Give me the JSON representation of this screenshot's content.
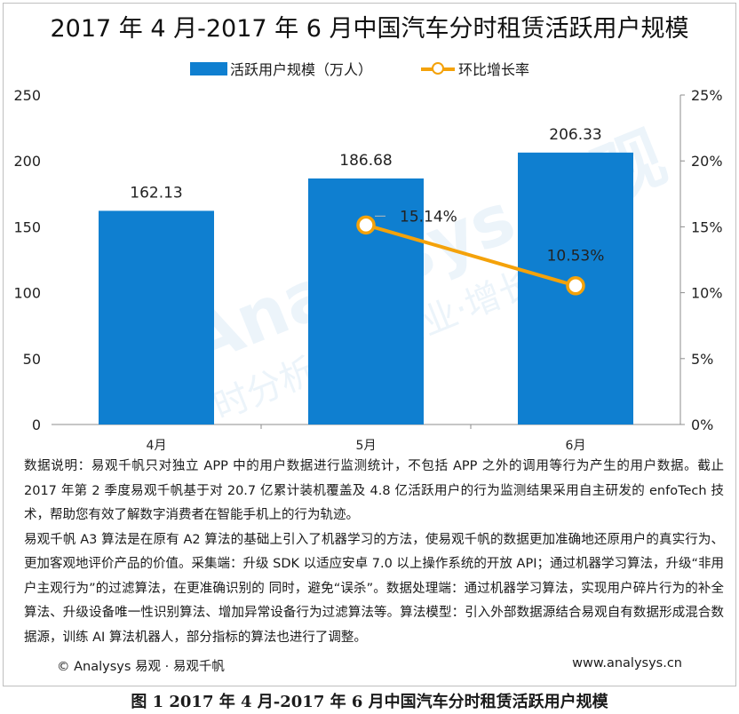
{
  "title": "2017 年 4 月-2017 年 6 月中国汽车分时租赁活跃用户规模",
  "legend": {
    "bar_label": "活跃用户规模（万人）",
    "line_label": "环比增长率"
  },
  "watermark": {
    "text1": "Analysys 易观",
    "text2": "时分析用户·商业·增长"
  },
  "chart_data": {
    "type": "bar+line",
    "title": "2017 年 4 月-2017 年 6 月中国汽车分时租赁活跃用户规模",
    "categories": [
      "4月",
      "5月",
      "6月"
    ],
    "series": [
      {
        "name": "活跃用户规模（万人）",
        "type": "bar",
        "axis": "left",
        "color": "#0f7fd0",
        "values": [
          162.13,
          186.68,
          206.33
        ],
        "labels": [
          "162.13",
          "186.68",
          "206.33"
        ]
      },
      {
        "name": "环比增长率",
        "type": "line",
        "axis": "right",
        "color": "#f4a20a",
        "values": [
          null,
          15.14,
          10.53
        ],
        "labels": [
          "",
          "15.14%",
          "10.53%"
        ]
      }
    ],
    "y_left": {
      "min": 0,
      "max": 250,
      "ticks": [
        "0",
        "50",
        "100",
        "150",
        "200",
        "250"
      ]
    },
    "y_right": {
      "min": 0,
      "max": 25,
      "ticks": [
        "0%",
        "5%",
        "10%",
        "15%",
        "20%",
        "25%"
      ]
    },
    "grid": false,
    "legend_position": "top-center"
  },
  "notes": {
    "p1": "数据说明：易观千帆只对独立 APP 中的用户数据进行监测统计，不包括 APP 之外的调用等行为产生的用户数据。截止 2017 年第 2 季度易观千帆基于对 20.7 亿累计装机覆盖及 4.8 亿活跃用户的行为监测结果采用自主研发的 enfoTech 技术，帮助您有效了解数字消费者在智能手机上的行为轨迹。",
    "p2": "易观千帆 A3 算法是在原有 A2 算法的基础上引入了机器学习的方法，使易观千帆的数据更加准确地还原用户的真实行为、更加客观地评价产品的价值。采集端：升级 SDK 以适应安卓 7.0 以上操作系统的开放 API；通过机器学习算法，升级“非用户主观行为”的过滤算法，在更准确识别的 同时，避免“误杀”。数据处理端：通过机器学习算法，实现用户碎片行为的补全算法、升级设备唯一性识别算法、增加异常设备行为过滤算法等。算法模型：引入外部数据源结合易观自有数据形成混合数据源，训练 AI 算法机器人，部分指标的算法也进行了调整。"
  },
  "footer": {
    "left": "© Analysys 易观 · 易观千帆",
    "right": "www.analysys.cn"
  },
  "caption": "图 1 2017 年 4 月-2017 年 6 月中国汽车分时租赁活跃用户规模"
}
